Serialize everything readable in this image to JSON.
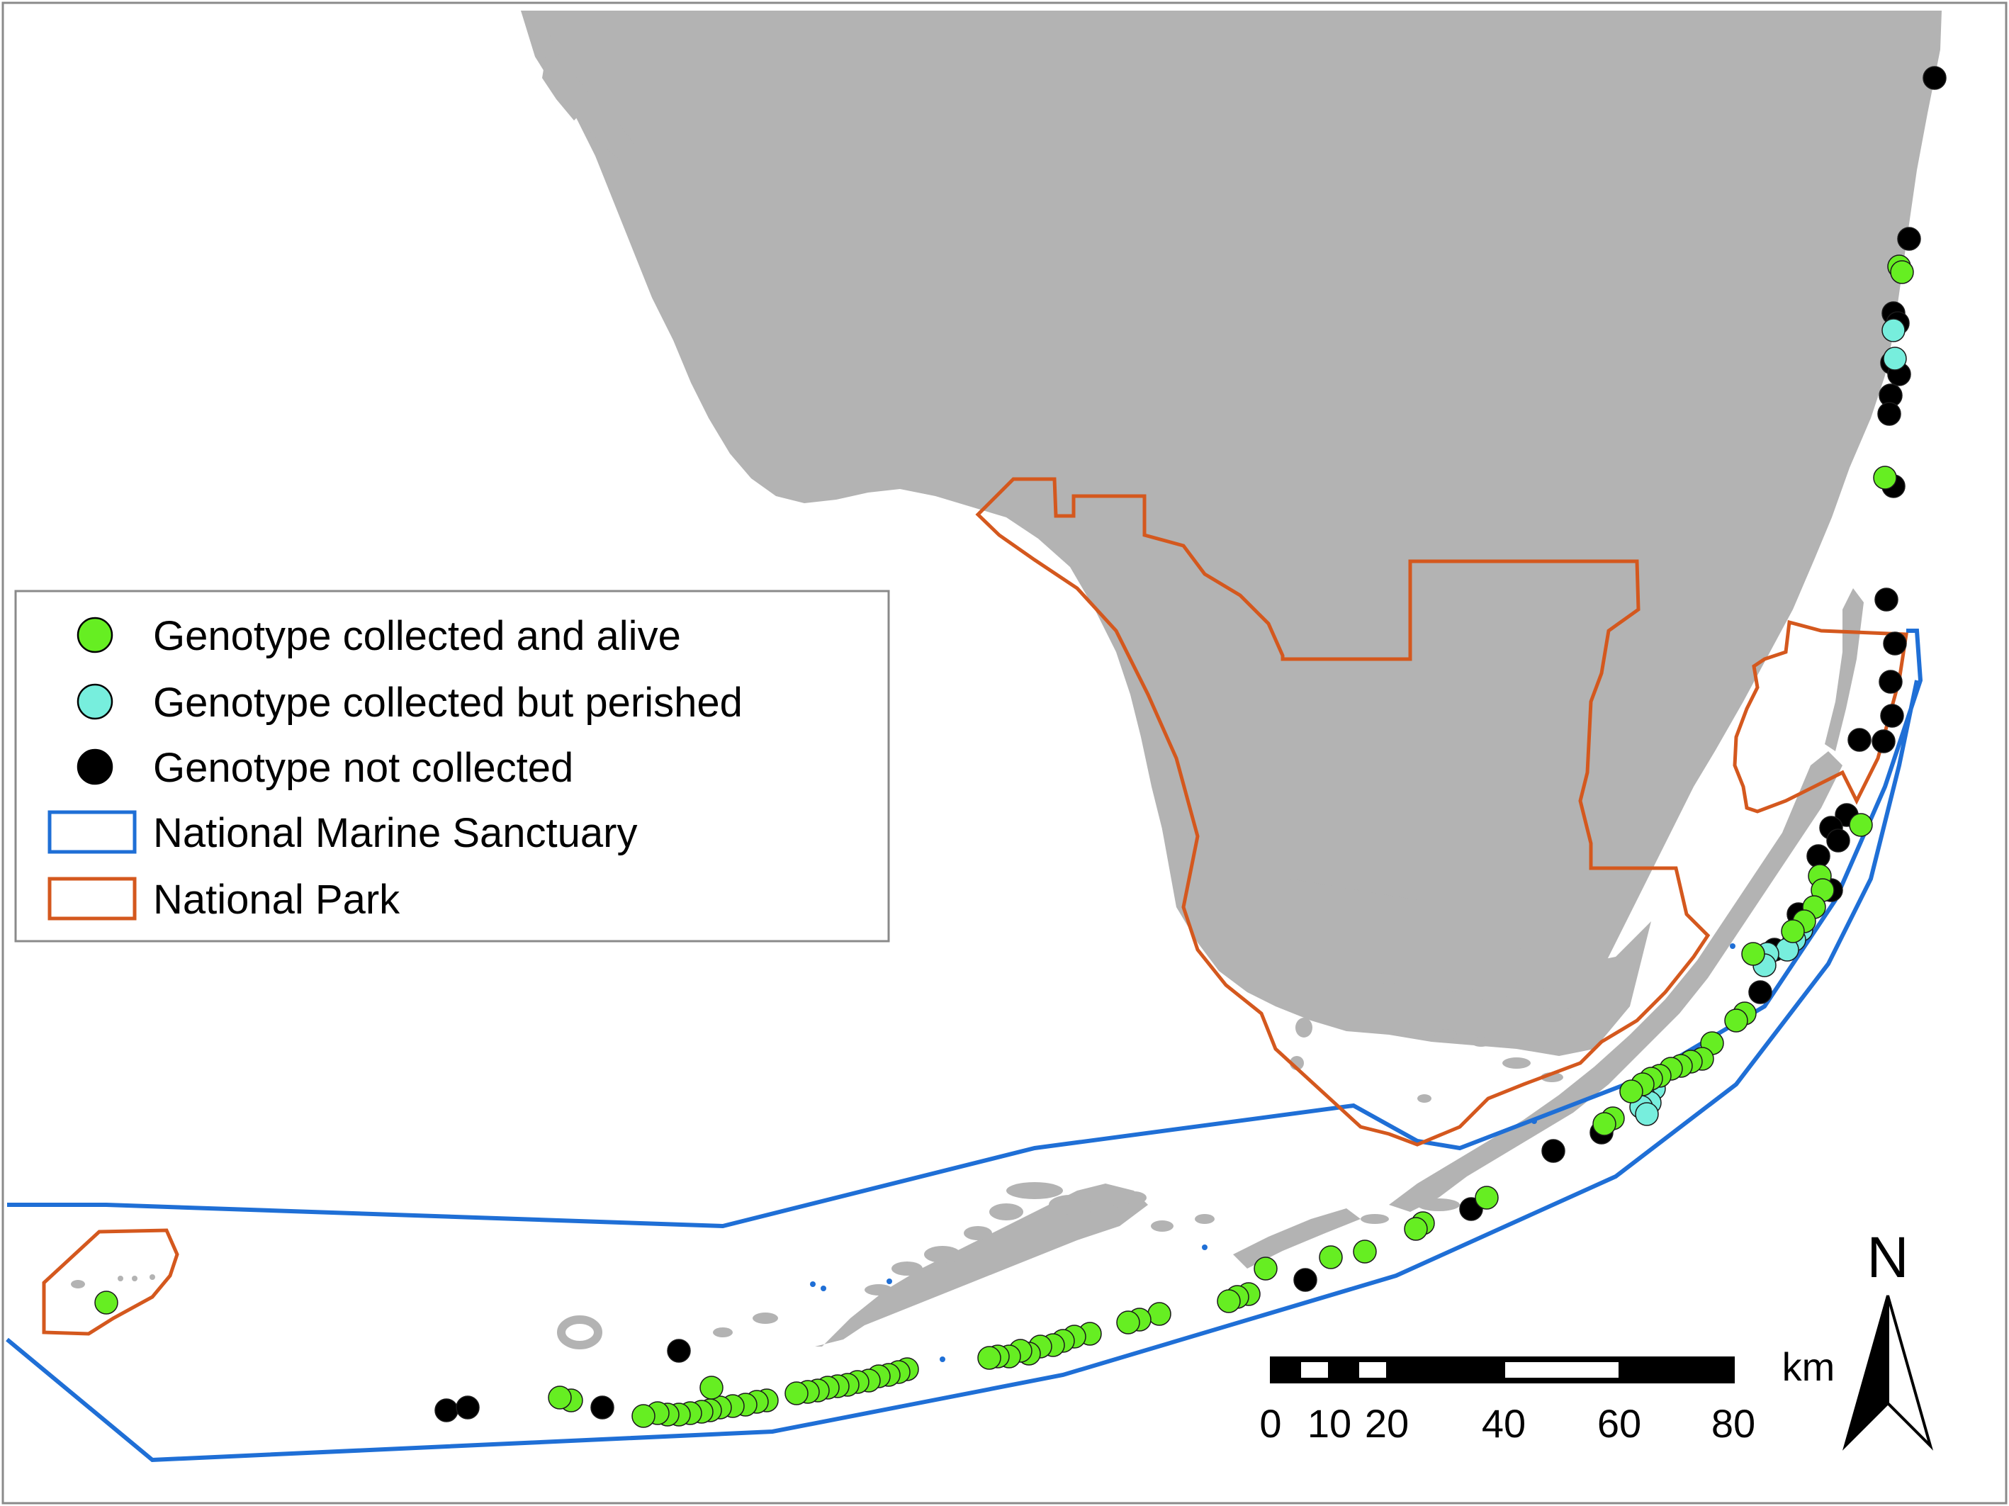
{
  "legend": {
    "items": [
      {
        "label": "Genotype collected and alive",
        "symbol": "circle",
        "color": "#66ee22"
      },
      {
        "label": "Genotype collected but perished",
        "symbol": "circle",
        "color": "#77eedd"
      },
      {
        "label": "Genotype not collected",
        "symbol": "circle",
        "color": "#000000"
      },
      {
        "label": "National Marine Sanctuary",
        "symbol": "box",
        "color": "#1f6fd6"
      },
      {
        "label": "National Park",
        "symbol": "box",
        "color": "#d4581e"
      }
    ]
  },
  "scale_bar": {
    "unit": "km",
    "ticks": [
      "0",
      "10",
      "20",
      "40",
      "60",
      "80"
    ]
  },
  "north_arrow": {
    "label": "N"
  },
  "colors": {
    "land": "#b3b3b3",
    "sanctuary_boundary": "#1f6fd6",
    "park_boundary": "#d4581e",
    "alive": "#66ee22",
    "perished": "#77eedd",
    "not_collected": "#000000"
  }
}
